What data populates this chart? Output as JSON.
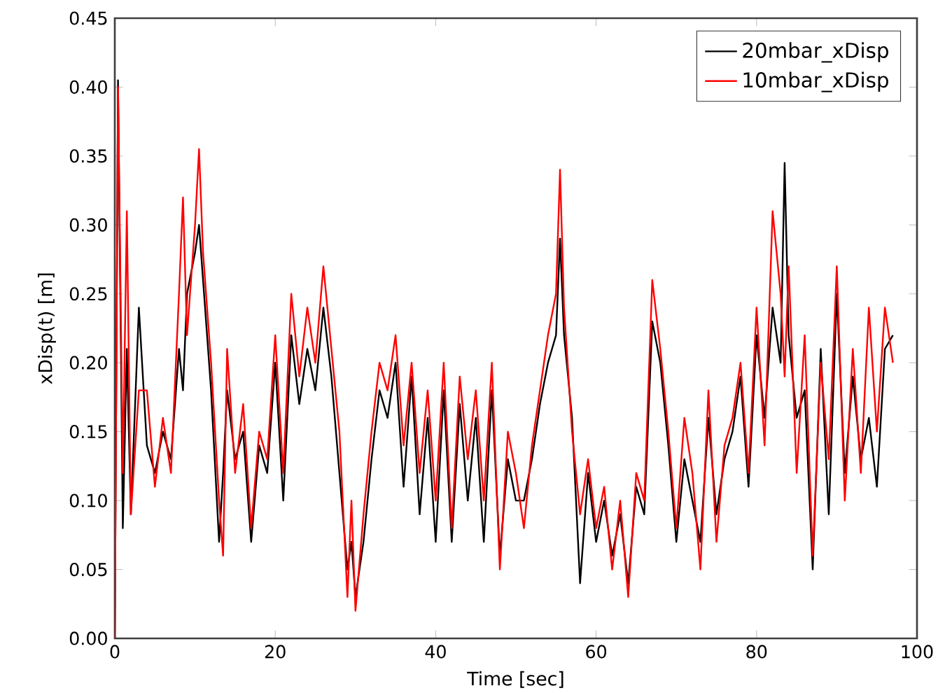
{
  "chart_data": {
    "type": "line",
    "xlabel": "Time [sec]",
    "ylabel": "xDisp(t) [m]",
    "x": [
      0,
      0.4,
      1,
      1.5,
      2,
      3,
      4,
      5,
      6,
      7,
      8,
      8.5,
      9,
      10,
      10.5,
      11,
      12,
      13,
      13.5,
      14,
      15,
      16,
      17,
      18,
      19,
      20,
      21,
      22,
      23,
      24,
      25,
      26,
      27,
      28,
      29,
      29.5,
      30,
      31,
      32,
      33,
      34,
      35,
      36,
      37,
      38,
      39,
      40,
      41,
      42,
      43,
      44,
      45,
      46,
      47,
      48,
      49,
      50,
      51,
      52,
      53,
      54,
      55,
      55.5,
      56,
      57,
      58,
      59,
      60,
      61,
      62,
      63,
      64,
      65,
      66,
      67,
      68,
      69,
      70,
      71,
      72,
      73,
      74,
      75,
      76,
      77,
      78,
      79,
      80,
      81,
      82,
      83,
      83.5,
      84,
      85,
      86,
      87,
      88,
      89,
      90,
      91,
      92,
      93,
      94,
      95,
      96,
      97
    ],
    "series": [
      {
        "name": "20mbar_xDisp",
        "color": "#000000",
        "values": [
          0.0,
          0.405,
          0.08,
          0.21,
          0.09,
          0.24,
          0.14,
          0.12,
          0.15,
          0.13,
          0.21,
          0.18,
          0.25,
          0.28,
          0.3,
          0.26,
          0.18,
          0.07,
          0.12,
          0.18,
          0.13,
          0.15,
          0.07,
          0.14,
          0.12,
          0.2,
          0.1,
          0.22,
          0.17,
          0.21,
          0.18,
          0.24,
          0.19,
          0.12,
          0.05,
          0.07,
          0.03,
          0.07,
          0.13,
          0.18,
          0.16,
          0.2,
          0.11,
          0.19,
          0.09,
          0.16,
          0.07,
          0.18,
          0.07,
          0.17,
          0.1,
          0.16,
          0.07,
          0.18,
          0.06,
          0.13,
          0.1,
          0.1,
          0.13,
          0.17,
          0.2,
          0.22,
          0.29,
          0.22,
          0.16,
          0.04,
          0.12,
          0.07,
          0.1,
          0.06,
          0.09,
          0.04,
          0.11,
          0.09,
          0.23,
          0.2,
          0.14,
          0.07,
          0.13,
          0.1,
          0.07,
          0.16,
          0.09,
          0.13,
          0.15,
          0.19,
          0.11,
          0.22,
          0.16,
          0.24,
          0.2,
          0.345,
          0.22,
          0.16,
          0.18,
          0.05,
          0.21,
          0.09,
          0.25,
          0.12,
          0.19,
          0.13,
          0.16,
          0.11,
          0.21,
          0.22
        ]
      },
      {
        "name": "10mbar_xDisp",
        "color": "#ff0000",
        "values": [
          0.0,
          0.4,
          0.12,
          0.31,
          0.09,
          0.18,
          0.18,
          0.11,
          0.16,
          0.12,
          0.25,
          0.32,
          0.22,
          0.3,
          0.355,
          0.28,
          0.2,
          0.1,
          0.06,
          0.21,
          0.12,
          0.17,
          0.08,
          0.15,
          0.13,
          0.22,
          0.12,
          0.25,
          0.19,
          0.24,
          0.2,
          0.27,
          0.21,
          0.15,
          0.03,
          0.1,
          0.02,
          0.09,
          0.15,
          0.2,
          0.18,
          0.22,
          0.14,
          0.2,
          0.12,
          0.18,
          0.1,
          0.2,
          0.08,
          0.19,
          0.13,
          0.18,
          0.1,
          0.2,
          0.05,
          0.15,
          0.12,
          0.08,
          0.14,
          0.18,
          0.22,
          0.25,
          0.34,
          0.24,
          0.15,
          0.09,
          0.13,
          0.08,
          0.11,
          0.05,
          0.1,
          0.03,
          0.12,
          0.1,
          0.26,
          0.21,
          0.15,
          0.08,
          0.16,
          0.12,
          0.05,
          0.18,
          0.07,
          0.14,
          0.16,
          0.2,
          0.12,
          0.24,
          0.14,
          0.31,
          0.25,
          0.19,
          0.27,
          0.12,
          0.22,
          0.06,
          0.2,
          0.13,
          0.27,
          0.1,
          0.21,
          0.12,
          0.24,
          0.15,
          0.24,
          0.2
        ]
      }
    ],
    "xlim": [
      0,
      100
    ],
    "xticks": [
      0,
      20,
      40,
      60,
      80,
      100
    ],
    "ylim": [
      0,
      0.45
    ],
    "yticks": [
      {
        "value": 0,
        "label": "0.00"
      },
      {
        "value": 0.05,
        "label": "0.05"
      },
      {
        "value": 0.1,
        "label": "0.10"
      },
      {
        "value": 0.15,
        "label": "0.15"
      },
      {
        "value": 0.2,
        "label": "0.20"
      },
      {
        "value": 0.25,
        "label": "0.25"
      },
      {
        "value": 0.3,
        "label": "0.30"
      },
      {
        "value": 0.35,
        "label": "0.35"
      },
      {
        "value": 0.4,
        "label": "0.40"
      },
      {
        "value": 0.45,
        "label": "0.45"
      }
    ],
    "legend": "top right",
    "grid": false
  }
}
